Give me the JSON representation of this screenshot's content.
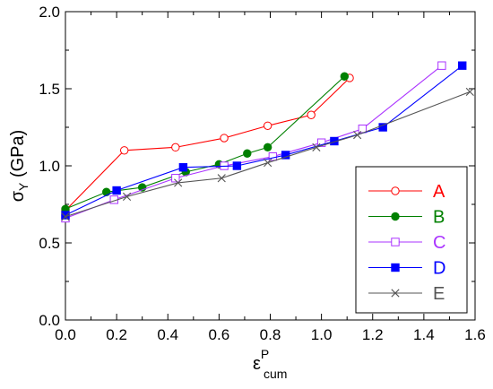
{
  "chart_data": {
    "type": "line",
    "xlim": [
      0.0,
      1.6
    ],
    "ylim": [
      0.0,
      2.0
    ],
    "x_ticks": [
      "0.0",
      "0.2",
      "0.4",
      "0.6",
      "0.8",
      "1.0",
      "1.2",
      "1.4",
      "1.6"
    ],
    "y_ticks": [
      "0.0",
      "0.5",
      "1.0",
      "1.5",
      "2.0"
    ],
    "xlabel": {
      "main": "ε",
      "sup": "P",
      "sub": "cum"
    },
    "ylabel": {
      "main": "σ",
      "sub": "Y",
      "rest": " (GPa)"
    },
    "grid": false,
    "legend_position": "bottom-right",
    "series": [
      {
        "name": "A",
        "color": "#ff0000",
        "marker": "circle-open",
        "x": [
          0.0,
          0.23,
          0.43,
          0.62,
          0.79,
          0.96,
          1.11
        ],
        "y": [
          0.71,
          1.1,
          1.12,
          1.18,
          1.26,
          1.33,
          1.57
        ]
      },
      {
        "name": "B",
        "color": "#008000",
        "marker": "circle-filled",
        "x": [
          0.0,
          0.16,
          0.3,
          0.47,
          0.6,
          0.71,
          0.79,
          1.09
        ],
        "y": [
          0.72,
          0.83,
          0.86,
          0.96,
          1.01,
          1.08,
          1.12,
          1.58
        ]
      },
      {
        "name": "C",
        "color": "#aa33ff",
        "marker": "square-open",
        "x": [
          0.0,
          0.19,
          0.43,
          0.62,
          0.81,
          1.0,
          1.16,
          1.47
        ],
        "y": [
          0.66,
          0.78,
          0.92,
          1.0,
          1.06,
          1.15,
          1.24,
          1.65
        ]
      },
      {
        "name": "D",
        "color": "#0000ff",
        "marker": "square-filled",
        "x": [
          0.0,
          0.2,
          0.46,
          0.67,
          0.86,
          1.05,
          1.24,
          1.55
        ],
        "y": [
          0.68,
          0.84,
          0.99,
          1.0,
          1.07,
          1.16,
          1.25,
          1.65
        ]
      },
      {
        "name": "E",
        "color": "#555555",
        "marker": "x",
        "x": [
          0.0,
          0.24,
          0.44,
          0.61,
          0.79,
          0.98,
          1.14,
          1.58
        ],
        "y": [
          0.67,
          0.8,
          0.89,
          0.92,
          1.02,
          1.12,
          1.2,
          1.48
        ]
      }
    ]
  }
}
